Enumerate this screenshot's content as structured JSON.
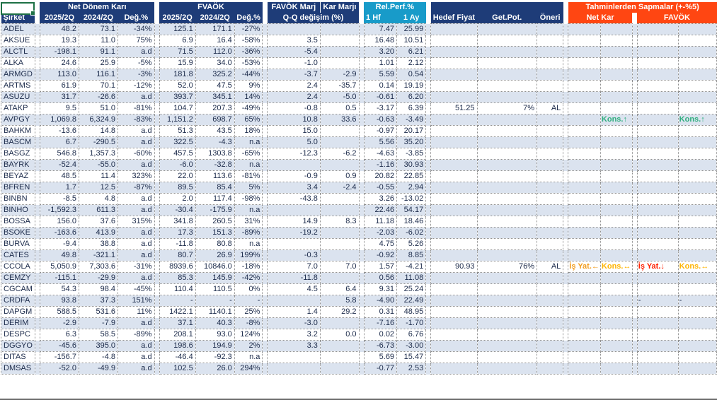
{
  "header": {
    "groups": {
      "net_profit": "Net Dönem Karı",
      "ebitda": "FVAÖK",
      "ebitda_margin": "FAVÖK Marj",
      "profit_margin": "Kar Marjı",
      "rel_perf": "Rel.Perf.%",
      "deviations": "Tahminlerden Sapmalar (+-%5)",
      "deviation_net": "Net Kar",
      "deviation_ebitda": "FAVÖK"
    },
    "cols": {
      "company": "Şirket",
      "np_2025": "2025/2Q",
      "np_2024": "2024/2Q",
      "np_chg": "Değ.%",
      "eb_2025": "2025/2Q",
      "eb_2024": "2024/2Q",
      "eb_chg": "Değ.%",
      "qq_change": "Q-Q değişim (%)",
      "week1": "1 Hf",
      "month1": "1 Ay",
      "target_price": "Hedef Fiyat",
      "return_potential": "Get.Pot.",
      "recommendation": "Öneri"
    }
  },
  "colors": {
    "navy_header": "#1e3c78",
    "cyan_header": "#189bc9",
    "orange_header": "#ff4612",
    "row_stripe": "#dbe3ef",
    "text": "#1b2a4a",
    "selection_green": "#1e7145",
    "tag_green": "#2fae7e",
    "tag_orange": "#f29d1f",
    "tag_amber": "#ffb400",
    "tag_red": "#ff2000"
  },
  "rows": [
    {
      "c": [
        "ADEL",
        "48.2",
        "73.1",
        "-34%",
        "125.1",
        "171.1",
        "-27%",
        "",
        "",
        "7.47",
        "25.99",
        "",
        "",
        "",
        "",
        "",
        "",
        ""
      ]
    },
    {
      "c": [
        "AKSUE",
        "19.3",
        "11.0",
        "75%",
        "6.9",
        "16.4",
        "-58%",
        "3.5",
        "",
        "16.48",
        "10.51",
        "",
        "",
        "",
        "",
        "",
        "",
        ""
      ]
    },
    {
      "c": [
        "ALCTL",
        "-198.1",
        "91.1",
        "a.d",
        "71.5",
        "112.0",
        "-36%",
        "-5.4",
        "",
        "3.20",
        "6.21",
        "",
        "",
        "",
        "",
        "",
        "",
        ""
      ]
    },
    {
      "c": [
        "ALKA",
        "24.6",
        "25.9",
        "-5%",
        "15.9",
        "34.0",
        "-53%",
        "-1.0",
        "",
        "1.01",
        "2.12",
        "",
        "",
        "",
        "",
        "",
        "",
        ""
      ]
    },
    {
      "c": [
        "ARMGD",
        "113.0",
        "116.1",
        "-3%",
        "181.8",
        "325.2",
        "-44%",
        "-3.7",
        "-2.9",
        "5.59",
        "0.54",
        "",
        "",
        "",
        "",
        "",
        "",
        ""
      ]
    },
    {
      "c": [
        "ARTMS",
        "61.9",
        "70.1",
        "-12%",
        "52.0",
        "47.5",
        "9%",
        "2.4",
        "-35.7",
        "0.14",
        "19.19",
        "",
        "",
        "",
        "",
        "",
        "",
        ""
      ]
    },
    {
      "c": [
        "ASUZU",
        "31.7",
        "-26.6",
        "a.d",
        "393.7",
        "345.1",
        "14%",
        "2.4",
        "-5.0",
        "-0.61",
        "6.20",
        "",
        "",
        "",
        "",
        "",
        "",
        ""
      ]
    },
    {
      "c": [
        "ATAKP",
        "9.5",
        "51.0",
        "-81%",
        "104.7",
        "207.3",
        "-49%",
        "-0.8",
        "0.5",
        "-3.17",
        "6.39",
        "51.25",
        "7%",
        "AL",
        "",
        "",
        "",
        ""
      ]
    },
    {
      "c": [
        "AVPGY",
        "1,069.8",
        "6,324.9",
        "-83%",
        "1,151.2",
        "698.7",
        "65%",
        "10.8",
        "33.6",
        "-0.63",
        "-3.49",
        "",
        "",
        "",
        "",
        "Kons.↑",
        "",
        "Kons.↑"
      ],
      "s": {
        "15": "green",
        "17": "green"
      }
    },
    {
      "c": [
        "BAHKM",
        "-13.6",
        "14.8",
        "a.d",
        "51.3",
        "43.5",
        "18%",
        "15.0",
        "",
        "-0.97",
        "20.17",
        "",
        "",
        "",
        "",
        "",
        "",
        ""
      ]
    },
    {
      "c": [
        "BASCM",
        "6.7",
        "-290.5",
        "a.d",
        "322.5",
        "-4.3",
        "n.a",
        "5.0",
        "",
        "5.56",
        "35.20",
        "",
        "",
        "",
        "",
        "",
        "",
        ""
      ]
    },
    {
      "c": [
        "BASGZ",
        "546.8",
        "1,357.3",
        "-60%",
        "457.5",
        "1303.8",
        "-65%",
        "-12.3",
        "-6.2",
        "-4.63",
        "-3.85",
        "",
        "",
        "",
        "",
        "",
        "",
        ""
      ]
    },
    {
      "c": [
        "BAYRK",
        "-52.4",
        "-55.0",
        "a.d",
        "-6.0",
        "-32.8",
        "n.a",
        "",
        "",
        "-1.16",
        "30.93",
        "",
        "",
        "",
        "",
        "",
        "",
        ""
      ]
    },
    {
      "c": [
        "BEYAZ",
        "48.5",
        "11.4",
        "323%",
        "22.0",
        "113.6",
        "-81%",
        "-0.9",
        "0.9",
        "20.82",
        "22.85",
        "",
        "",
        "",
        "",
        "",
        "",
        ""
      ]
    },
    {
      "c": [
        "BFREN",
        "1.7",
        "12.5",
        "-87%",
        "89.5",
        "85.4",
        "5%",
        "3.4",
        "-2.4",
        "-0.55",
        "2.94",
        "",
        "",
        "",
        "",
        "",
        "",
        ""
      ]
    },
    {
      "c": [
        "BINBN",
        "-8.5",
        "4.8",
        "a.d",
        "2.0",
        "117.4",
        "-98%",
        "-43.8",
        "",
        "3.26",
        "-13.02",
        "",
        "",
        "",
        "",
        "",
        "",
        ""
      ]
    },
    {
      "c": [
        "BINHO",
        "-1,592.3",
        "611.3",
        "a.d",
        "-30.4",
        "-175.9",
        "n.a",
        "",
        "",
        "22.46",
        "54.17",
        "",
        "",
        "",
        "",
        "",
        "",
        ""
      ]
    },
    {
      "c": [
        "BOSSA",
        "156.0",
        "37.6",
        "315%",
        "341.8",
        "260.5",
        "31%",
        "14.9",
        "8.3",
        "11.18",
        "18.46",
        "",
        "",
        "",
        "",
        "",
        "",
        ""
      ]
    },
    {
      "c": [
        "BSOKE",
        "-163.6",
        "413.9",
        "a.d",
        "17.3",
        "151.3",
        "-89%",
        "-19.2",
        "",
        "-2.03",
        "-6.02",
        "",
        "",
        "",
        "",
        "",
        "",
        ""
      ]
    },
    {
      "c": [
        "BURVA",
        "-9.4",
        "38.8",
        "a.d",
        "-11.8",
        "80.8",
        "n.a",
        "",
        "",
        "4.75",
        "5.26",
        "",
        "",
        "",
        "",
        "",
        "",
        ""
      ]
    },
    {
      "c": [
        "CATES",
        "49.8",
        "-321.1",
        "a.d",
        "80.7",
        "26.9",
        "199%",
        "-0.3",
        "",
        "-0.92",
        "8.85",
        "",
        "",
        "",
        "",
        "",
        "",
        ""
      ]
    },
    {
      "c": [
        "CCOLA",
        "5,050.9",
        "7,303.6",
        "-31%",
        "8939.6",
        "10846.0",
        "-18%",
        "7.0",
        "7.0",
        "1.57",
        "-4.21",
        "90.93",
        "76%",
        "AL",
        "İş Yat.←",
        "Kons.↔",
        "İş Yat.↓",
        "Kons.↔"
      ],
      "s": {
        "14": "orange",
        "15": "amber",
        "16": "red",
        "17": "amber"
      }
    },
    {
      "c": [
        "CEMZY",
        "-115.1",
        "-29.9",
        "a.d",
        "85.3",
        "145.9",
        "-42%",
        "-11.8",
        "",
        "0.56",
        "11.08",
        "",
        "",
        "",
        "",
        "",
        "",
        ""
      ]
    },
    {
      "c": [
        "CGCAM",
        "54.3",
        "98.4",
        "-45%",
        "110.4",
        "110.5",
        "0%",
        "4.5",
        "6.4",
        "9.31",
        "25.24",
        "",
        "",
        "",
        "",
        "",
        "",
        ""
      ]
    },
    {
      "c": [
        "CRDFA",
        "93.8",
        "37.3",
        "151%",
        "-",
        "-",
        "-",
        "",
        "5.8",
        "-4.90",
        "22.49",
        "",
        "",
        "",
        "",
        "",
        "-",
        "-"
      ]
    },
    {
      "c": [
        "DAPGM",
        "588.5",
        "531.6",
        "11%",
        "1422.1",
        "1140.1",
        "25%",
        "1.4",
        "29.2",
        "0.31",
        "48.95",
        "",
        "",
        "",
        "",
        "",
        "",
        ""
      ]
    },
    {
      "c": [
        "DERIM",
        "-2.9",
        "-7.9",
        "a.d",
        "37.1",
        "40.3",
        "-8%",
        "-3.0",
        "",
        "-7.16",
        "-1.70",
        "",
        "",
        "",
        "",
        "",
        "",
        ""
      ]
    },
    {
      "c": [
        "DESPC",
        "6.3",
        "58.5",
        "-89%",
        "208.1",
        "93.0",
        "124%",
        "3.2",
        "0.0",
        "0.02",
        "6.76",
        "",
        "",
        "",
        "",
        "",
        "",
        ""
      ]
    },
    {
      "c": [
        "DGGYO",
        "-45.6",
        "395.0",
        "a.d",
        "198.6",
        "194.9",
        "2%",
        "3.3",
        "",
        "-6.73",
        "-3.00",
        "",
        "",
        "",
        "",
        "",
        "",
        ""
      ]
    },
    {
      "c": [
        "DITAS",
        "-156.7",
        "-4.8",
        "a.d",
        "-46.4",
        "-92.3",
        "n.a",
        "",
        "",
        "5.69",
        "15.47",
        "",
        "",
        "",
        "",
        "",
        "",
        ""
      ]
    },
    {
      "c": [
        "DMSAS",
        "-52.0",
        "-49.9",
        "a.d",
        "102.5",
        "26.0",
        "294%",
        "",
        "",
        "-0.77",
        "2.53",
        "",
        "",
        "",
        "",
        "",
        "",
        ""
      ]
    }
  ]
}
